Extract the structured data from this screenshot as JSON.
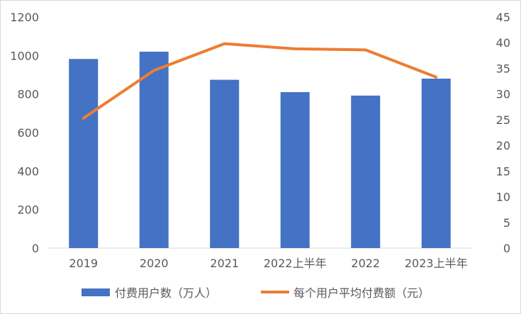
{
  "chart_data": {
    "type": "bar",
    "categories": [
      "2019",
      "2020",
      "2021",
      "2022上半年",
      "2022",
      "2023上半年"
    ],
    "series": [
      {
        "name": "付费用户数（万人）",
        "type": "bar",
        "axis": "left",
        "color": "#4472C4",
        "values": [
          982,
          1020,
          874,
          810,
          792,
          880
        ]
      },
      {
        "name": "每个用户平均付费额（元）",
        "type": "line",
        "axis": "right",
        "color": "#ED7D31",
        "values": [
          25.3,
          34.6,
          39.8,
          38.8,
          38.6,
          33.3
        ]
      }
    ],
    "y_left": {
      "min": 0,
      "max": 1200,
      "ticks": [
        0,
        200,
        400,
        600,
        800,
        1000,
        1200
      ]
    },
    "y_right": {
      "min": 0,
      "max": 45,
      "ticks": [
        0,
        5,
        10,
        15,
        20,
        25,
        30,
        35,
        40,
        45
      ]
    },
    "grid": false,
    "legend_position": "bottom"
  }
}
